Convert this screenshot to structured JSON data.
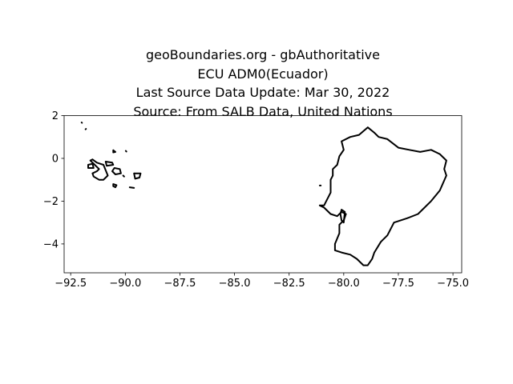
{
  "title_lines": [
    "geoBoundaries.org - gbAuthoritative",
    "ECU ADM0(Ecuador)",
    "Last Source Data Update: Mar 30, 2022",
    "Source: From SALB Data, United Nations"
  ],
  "chart_data": {
    "type": "map",
    "x_ticks": [
      "−92.5",
      "−90.0",
      "−87.5",
      "−85.0",
      "−82.5",
      "−80.0",
      "−77.5",
      "−75.0"
    ],
    "y_ticks": [
      "2",
      "0",
      "−2",
      "−4"
    ],
    "xlim": [
      -92.8,
      -74.6
    ],
    "ylim": [
      -5.35,
      2.0
    ],
    "grid": false,
    "outline_color": "#000000",
    "shapes": {
      "mainland": [
        [
          -81.1,
          -2.2
        ],
        [
          -80.9,
          -2.2
        ],
        [
          -80.8,
          -2.0
        ],
        [
          -80.6,
          -1.6
        ],
        [
          -80.6,
          -1.0
        ],
        [
          -80.5,
          -0.8
        ],
        [
          -80.5,
          -0.5
        ],
        [
          -80.3,
          -0.3
        ],
        [
          -80.2,
          0.1
        ],
        [
          -80.0,
          0.4
        ],
        [
          -80.1,
          0.8
        ],
        [
          -79.7,
          1.0
        ],
        [
          -79.3,
          1.1
        ],
        [
          -78.9,
          1.45
        ],
        [
          -78.6,
          1.2
        ],
        [
          -78.4,
          1.0
        ],
        [
          -78.0,
          0.9
        ],
        [
          -77.5,
          0.5
        ],
        [
          -77.0,
          0.4
        ],
        [
          -76.5,
          0.3
        ],
        [
          -76.0,
          0.4
        ],
        [
          -75.6,
          0.2
        ],
        [
          -75.3,
          -0.1
        ],
        [
          -75.4,
          -0.5
        ],
        [
          -75.3,
          -0.8
        ],
        [
          -75.6,
          -1.5
        ],
        [
          -76.0,
          -2.0
        ],
        [
          -76.6,
          -2.6
        ],
        [
          -77.1,
          -2.8
        ],
        [
          -77.7,
          -3.0
        ],
        [
          -78.0,
          -3.6
        ],
        [
          -78.3,
          -3.9
        ],
        [
          -78.6,
          -4.4
        ],
        [
          -78.7,
          -4.7
        ],
        [
          -78.9,
          -5.0
        ],
        [
          -79.1,
          -5.0
        ],
        [
          -79.4,
          -4.7
        ],
        [
          -79.7,
          -4.5
        ],
        [
          -80.1,
          -4.4
        ],
        [
          -80.4,
          -4.3
        ],
        [
          -80.4,
          -4.0
        ],
        [
          -80.2,
          -3.5
        ],
        [
          -80.2,
          -3.1
        ],
        [
          -80.0,
          -2.9
        ],
        [
          -79.9,
          -2.6
        ],
        [
          -80.1,
          -2.5
        ],
        [
          -80.3,
          -2.7
        ],
        [
          -80.6,
          -2.6
        ],
        [
          -80.9,
          -2.3
        ],
        [
          -81.1,
          -2.2
        ]
      ],
      "puna_island": [
        [
          -80.1,
          -2.4
        ],
        [
          -79.95,
          -2.5
        ],
        [
          -80.0,
          -3.0
        ],
        [
          -80.1,
          -2.9
        ],
        [
          -80.15,
          -2.6
        ],
        [
          -80.1,
          -2.4
        ]
      ],
      "la_plata_island": [
        [
          -81.1,
          -1.27
        ],
        [
          -81.05,
          -1.27
        ]
      ],
      "isabela": [
        [
          -91.5,
          -0.05
        ],
        [
          -91.3,
          -0.2
        ],
        [
          -91.0,
          -0.3
        ],
        [
          -90.9,
          -0.55
        ],
        [
          -90.8,
          -0.8
        ],
        [
          -91.0,
          -1.0
        ],
        [
          -91.2,
          -1.0
        ],
        [
          -91.45,
          -0.85
        ],
        [
          -91.5,
          -0.7
        ],
        [
          -91.3,
          -0.6
        ],
        [
          -91.2,
          -0.5
        ],
        [
          -91.4,
          -0.3
        ],
        [
          -91.6,
          -0.1
        ],
        [
          -91.5,
          -0.05
        ]
      ],
      "fernandina": [
        [
          -91.7,
          -0.3
        ],
        [
          -91.5,
          -0.25
        ],
        [
          -91.45,
          -0.45
        ],
        [
          -91.7,
          -0.45
        ],
        [
          -91.7,
          -0.3
        ]
      ],
      "santiago": [
        [
          -90.9,
          -0.15
        ],
        [
          -90.6,
          -0.2
        ],
        [
          -90.55,
          -0.3
        ],
        [
          -90.85,
          -0.35
        ],
        [
          -90.9,
          -0.15
        ]
      ],
      "santa_cruz": [
        [
          -90.5,
          -0.45
        ],
        [
          -90.25,
          -0.5
        ],
        [
          -90.2,
          -0.7
        ],
        [
          -90.45,
          -0.75
        ],
        [
          -90.6,
          -0.6
        ],
        [
          -90.5,
          -0.45
        ]
      ],
      "marchena": [
        [
          -90.55,
          0.38
        ],
        [
          -90.45,
          0.3
        ],
        [
          -90.55,
          0.28
        ],
        [
          -90.55,
          0.38
        ]
      ],
      "genovesa": [
        [
          -89.98,
          0.35
        ],
        [
          -89.95,
          0.32
        ]
      ],
      "san_cristobal": [
        [
          -89.6,
          -0.7
        ],
        [
          -89.3,
          -0.7
        ],
        [
          -89.35,
          -0.9
        ],
        [
          -89.55,
          -0.95
        ],
        [
          -89.6,
          -0.7
        ]
      ],
      "floreana": [
        [
          -90.55,
          -1.2
        ],
        [
          -90.4,
          -1.25
        ],
        [
          -90.45,
          -1.35
        ],
        [
          -90.55,
          -1.3
        ],
        [
          -90.55,
          -1.2
        ]
      ],
      "espanola": [
        [
          -89.8,
          -1.35
        ],
        [
          -89.6,
          -1.38
        ]
      ],
      "santa_fe": [
        [
          -90.1,
          -0.8
        ],
        [
          -90.05,
          -0.85
        ]
      ],
      "darwin": [
        [
          -92.0,
          1.68
        ],
        [
          -91.98,
          1.66
        ]
      ],
      "wolf": [
        [
          -91.8,
          1.38
        ],
        [
          -91.82,
          1.36
        ]
      ]
    }
  }
}
